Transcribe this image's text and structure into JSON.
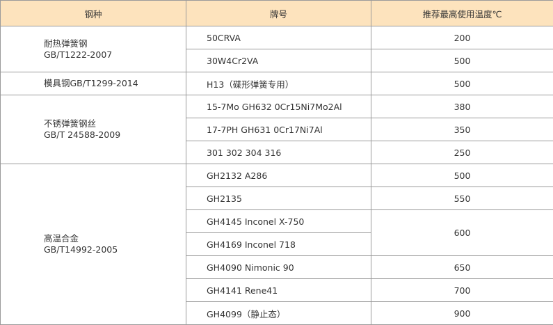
{
  "header": {
    "type": "钢种",
    "grade": "牌号",
    "temp": "推荐最高使用温度℃"
  },
  "groups": [
    {
      "type": [
        "耐热弹簧钢",
        "GB/T1222-2007"
      ],
      "rows": [
        {
          "grade": "50CRVA",
          "temp": "200"
        },
        {
          "grade": "30W4Cr2VA",
          "temp": "500"
        }
      ]
    },
    {
      "type": [
        "模具钢GB/T1299-2014"
      ],
      "rows": [
        {
          "grade": "H13（碟形弹簧专用）",
          "temp": "500"
        }
      ]
    },
    {
      "type": [
        "不锈弹簧钢丝",
        "GB/T 24588-2009"
      ],
      "rows": [
        {
          "grade": "15-7Mo  GH632  0Cr15Ni7Mo2Al",
          "temp": "380"
        },
        {
          "grade": "17-7PH  GH631  0Cr17Ni7Al",
          "temp": "350"
        },
        {
          "grade": "301  302  304  316",
          "temp": "250"
        }
      ]
    },
    {
      "type": [
        "高温合金",
        "GB/T14992-2005"
      ],
      "rows": [
        {
          "grade": "GH2132  A286",
          "temp": "500"
        },
        {
          "grade": "GH2135",
          "temp": "550"
        },
        {
          "grade": "GH4145  Inconel  X-750",
          "temp": "600",
          "temp_rowspan": 2
        },
        {
          "grade": "GH4169  Inconel  718"
        },
        {
          "grade": "GH4090  Nimonic  90",
          "temp": "650"
        },
        {
          "grade": "GH4141  Rene41",
          "temp": "700"
        },
        {
          "grade": "GH4099（静止态）",
          "temp": "900"
        }
      ]
    }
  ]
}
